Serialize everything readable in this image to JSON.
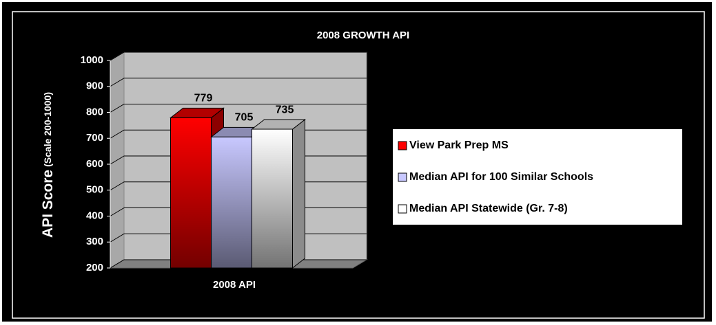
{
  "chart_data": {
    "type": "bar3d",
    "title": "2008 GROWTH API",
    "ylabel": "API Score",
    "ylabel_note": "(Scale 200-1000)",
    "categories": [
      "2008 API"
    ],
    "series": [
      {
        "name": "View Park Prep MS",
        "color": "#ff0000",
        "values": [
          779
        ]
      },
      {
        "name": "Median API for 100 Similar Schools",
        "color": "#c8c8ff",
        "values": [
          705
        ]
      },
      {
        "name": "Median API Statewide (Gr. 7-8)",
        "color": "#ffffff",
        "values": [
          735
        ]
      }
    ],
    "ylim": [
      200,
      1000
    ],
    "yticks": [
      200,
      300,
      400,
      500,
      600,
      700,
      800,
      900,
      1000
    ],
    "grid": true,
    "legend": "right"
  }
}
